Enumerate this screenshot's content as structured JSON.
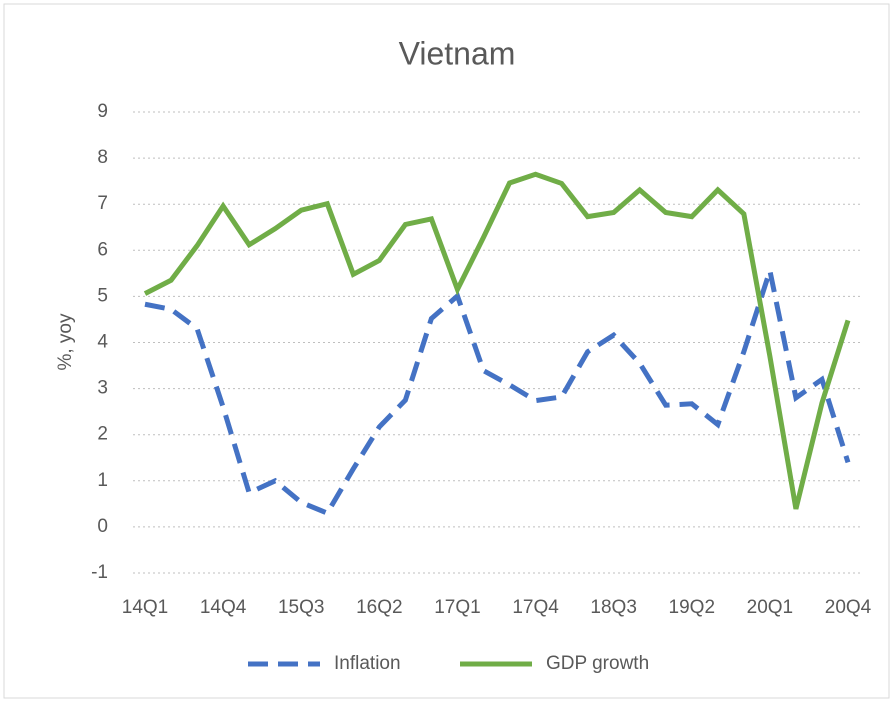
{
  "chart_data": {
    "type": "line",
    "title": "Vietnam",
    "y_label": "%, yoy",
    "categories": [
      "14Q1",
      null,
      null,
      "14Q4",
      null,
      null,
      "15Q3",
      null,
      null,
      "16Q2",
      null,
      null,
      "17Q1",
      null,
      null,
      "17Q4",
      null,
      null,
      "18Q3",
      null,
      null,
      "19Q2",
      null,
      null,
      "20Q1",
      null,
      null,
      "20Q4"
    ],
    "series": [
      {
        "name": "Inflation",
        "color": "#4472c4",
        "dash": true,
        "values": [
          4.83,
          4.72,
          4.3,
          2.6,
          0.74,
          1.0,
          0.53,
          0.3,
          1.26,
          2.17,
          2.75,
          4.52,
          5.01,
          3.39,
          3.08,
          2.74,
          2.82,
          3.8,
          4.16,
          3.55,
          2.64,
          2.67,
          2.22,
          3.8,
          5.56,
          2.8,
          3.2,
          1.4
        ]
      },
      {
        "name": "GDP growth",
        "color": "#70ad47",
        "dash": false,
        "values": [
          5.06,
          5.35,
          6.1,
          6.96,
          6.12,
          6.47,
          6.87,
          7.01,
          5.48,
          5.78,
          6.56,
          6.68,
          5.15,
          6.28,
          7.46,
          7.65,
          7.45,
          6.73,
          6.82,
          7.31,
          6.82,
          6.73,
          7.31,
          6.79,
          3.7,
          0.39,
          2.69,
          4.48
        ]
      }
    ],
    "ylim": [
      -1,
      9
    ],
    "yticks": [
      -1,
      0,
      1,
      2,
      3,
      4,
      5,
      6,
      7,
      8,
      9
    ],
    "grid": true,
    "legend": "bottom"
  }
}
